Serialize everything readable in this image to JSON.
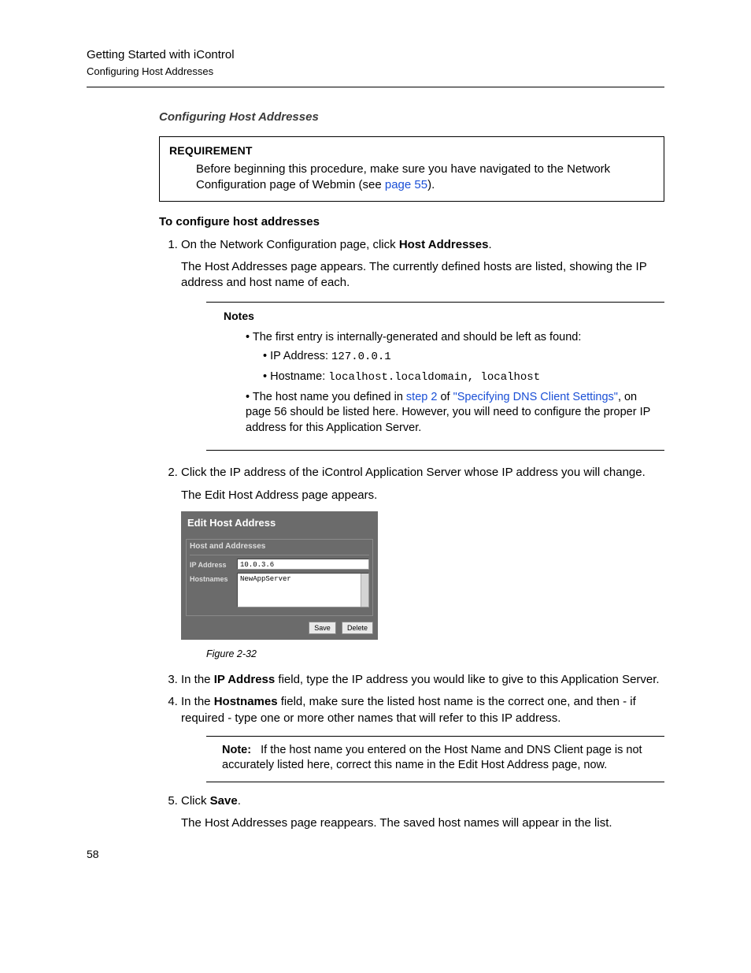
{
  "runningHead": {
    "title": "Getting Started with iControl",
    "subtitle": "Configuring Host Addresses"
  },
  "sectionLabel": "Configuring Host Addresses",
  "requirement": {
    "title": "REQUIREMENT",
    "body_pre": "Before beginning this procedure, make sure you have navigated to the Network Configuration page of Webmin (see ",
    "link": "page 55",
    "body_post": ")."
  },
  "subhead": "To configure host addresses",
  "steps": {
    "s1_pre": "On the Network Configuration page, click ",
    "s1_bold": "Host Addresses",
    "s1_post": ".",
    "s1_cont": "The Host Addresses page appears. The currently defined hosts are listed, showing the IP address and host name of each.",
    "s2": "Click the IP address of the iControl Application Server whose IP address you will change.",
    "s2_cont": "The Edit Host Address page appears.",
    "s3_pre": "In the ",
    "s3_bold": "IP Address",
    "s3_post": " field, type the IP address you would like to give to this Application Server.",
    "s4_pre": "In the ",
    "s4_bold": "Hostnames",
    "s4_post": " field, make sure the listed host name is the correct one, and then - if required - type one or more other names that will refer to this IP address.",
    "s5_pre": "Click ",
    "s5_bold": "Save",
    "s5_post": ".",
    "s5_cont": "The Host Addresses page reappears. The saved host names will appear in the list."
  },
  "notes": {
    "title": "Notes",
    "b1": "The first entry is internally-generated and should be left as found:",
    "b1a_label": "IP Address: ",
    "b1a_val": "127.0.0.1",
    "b1b_label": "Hostname: ",
    "b1b_val": "localhost.localdomain, localhost",
    "b2_pre": "The host name you defined in ",
    "b2_link1": "step 2",
    "b2_mid": " of ",
    "b2_link2": "\"Specifying DNS Client Settings\"",
    "b2_post": ", on page 56 should be listed here. However, you will need to configure the proper IP address for this Application Server."
  },
  "figure": {
    "caption": "Figure 2-32",
    "title": "Edit Host Address",
    "panelHead": "Host and Addresses",
    "ipLabel": "IP Address",
    "ipValue": "10.0.3.6",
    "hostLabel": "Hostnames",
    "hostValue": "NewAppServer",
    "saveBtn": "Save",
    "deleteBtn": "Delete"
  },
  "inlineNote": {
    "label": "Note:",
    "body": "If the host name you entered on the Host Name and DNS Client page is not accurately listed here, correct this name in the Edit Host Address page, now."
  },
  "pageNumber": "58"
}
